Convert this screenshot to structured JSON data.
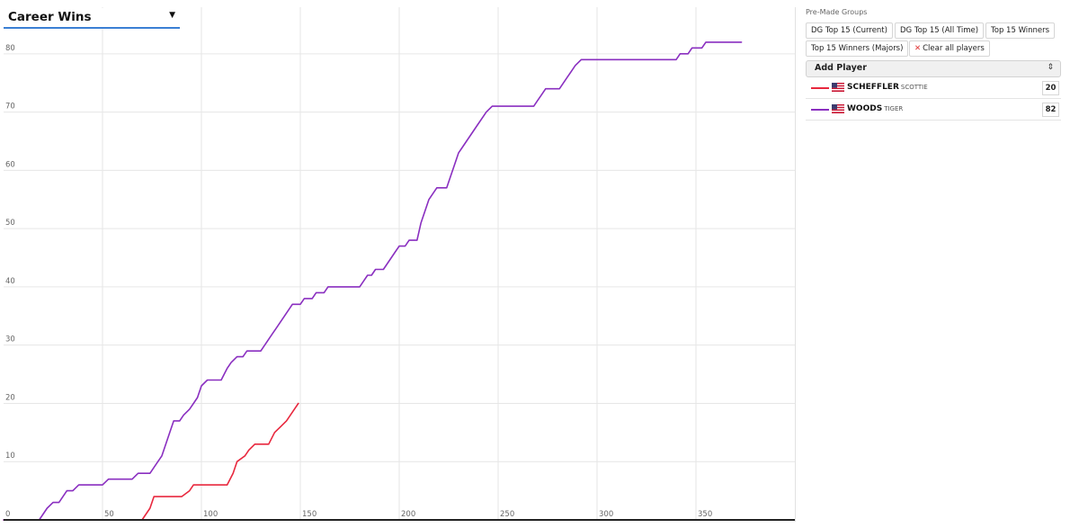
{
  "metric": {
    "label": "Career Wins"
  },
  "panel": {
    "groups_title": "Pre-Made Groups",
    "groups": [
      "DG Top 15 (Current)",
      "DG Top 15 (All Time)",
      "Top 15 Winners",
      "Top 15 Winners (Majors)"
    ],
    "clear_label": "Clear all players",
    "clear_icon": "x-icon",
    "add_player_label": "Add Player",
    "players": [
      {
        "last": "SCHEFFLER",
        "first": "SCOTTIE",
        "value": "20",
        "color": "#e8283e",
        "flag": "us-flag-icon"
      },
      {
        "last": "WOODS",
        "first": "TIGER",
        "value": "82",
        "color": "#8a2fc0",
        "flag": "us-flag-icon"
      }
    ]
  },
  "chart_data": {
    "type": "line",
    "title": "",
    "xlabel": "",
    "ylabel": "",
    "xlim": [
      0,
      400
    ],
    "ylim": [
      0,
      88
    ],
    "x_ticks": [
      50,
      100,
      150,
      200,
      250,
      300,
      350
    ],
    "y_ticks": [
      0,
      10,
      20,
      30,
      40,
      50,
      60,
      70,
      80
    ],
    "grid": true,
    "series": [
      {
        "name": "SCHEFFLER SCOTTIE",
        "color": "#e8283e",
        "points": [
          [
            0,
            0
          ],
          [
            70,
            0
          ],
          [
            74,
            2
          ],
          [
            76,
            4
          ],
          [
            90,
            4
          ],
          [
            94,
            5
          ],
          [
            96,
            6
          ],
          [
            113,
            6
          ],
          [
            116,
            8
          ],
          [
            118,
            10
          ],
          [
            122,
            11
          ],
          [
            124,
            12
          ],
          [
            127,
            13
          ],
          [
            134,
            13
          ],
          [
            137,
            15
          ],
          [
            140,
            16
          ],
          [
            143,
            17
          ],
          [
            145,
            18
          ],
          [
            147,
            19
          ],
          [
            149,
            20
          ]
        ]
      },
      {
        "name": "WOODS TIGER",
        "color": "#8a2fc0",
        "points": [
          [
            0,
            0
          ],
          [
            18,
            0
          ],
          [
            20,
            1
          ],
          [
            22,
            2
          ],
          [
            25,
            3
          ],
          [
            28,
            3
          ],
          [
            30,
            4
          ],
          [
            32,
            5
          ],
          [
            35,
            5
          ],
          [
            38,
            6
          ],
          [
            50,
            6
          ],
          [
            53,
            7
          ],
          [
            65,
            7
          ],
          [
            68,
            8
          ],
          [
            74,
            8
          ],
          [
            76,
            9
          ],
          [
            78,
            10
          ],
          [
            80,
            11
          ],
          [
            82,
            13
          ],
          [
            84,
            15
          ],
          [
            86,
            17
          ],
          [
            89,
            17
          ],
          [
            91,
            18
          ],
          [
            94,
            19
          ],
          [
            96,
            20
          ],
          [
            98,
            21
          ],
          [
            100,
            23
          ],
          [
            103,
            24
          ],
          [
            110,
            24
          ],
          [
            113,
            26
          ],
          [
            115,
            27
          ],
          [
            118,
            28
          ],
          [
            121,
            28
          ],
          [
            123,
            29
          ],
          [
            130,
            29
          ],
          [
            132,
            30
          ],
          [
            134,
            31
          ],
          [
            136,
            32
          ],
          [
            138,
            33
          ],
          [
            140,
            34
          ],
          [
            142,
            35
          ],
          [
            144,
            36
          ],
          [
            146,
            37
          ],
          [
            150,
            37
          ],
          [
            152,
            38
          ],
          [
            156,
            38
          ],
          [
            158,
            39
          ],
          [
            162,
            39
          ],
          [
            164,
            40
          ],
          [
            180,
            40
          ],
          [
            182,
            41
          ],
          [
            184,
            42
          ],
          [
            186,
            42
          ],
          [
            188,
            43
          ],
          [
            192,
            43
          ],
          [
            194,
            44
          ],
          [
            196,
            45
          ],
          [
            198,
            46
          ],
          [
            200,
            47
          ],
          [
            203,
            47
          ],
          [
            205,
            48
          ],
          [
            209,
            48
          ],
          [
            211,
            51
          ],
          [
            213,
            53
          ],
          [
            215,
            55
          ],
          [
            217,
            56
          ],
          [
            219,
            57
          ],
          [
            224,
            57
          ],
          [
            226,
            59
          ],
          [
            228,
            61
          ],
          [
            230,
            63
          ],
          [
            232,
            64
          ],
          [
            234,
            65
          ],
          [
            236,
            66
          ],
          [
            238,
            67
          ],
          [
            240,
            68
          ],
          [
            242,
            69
          ],
          [
            244,
            70
          ],
          [
            247,
            71
          ],
          [
            260,
            71
          ],
          [
            268,
            71
          ],
          [
            270,
            72
          ],
          [
            272,
            73
          ],
          [
            274,
            74
          ],
          [
            281,
            74
          ],
          [
            283,
            75
          ],
          [
            285,
            76
          ],
          [
            287,
            77
          ],
          [
            289,
            78
          ],
          [
            292,
            79
          ],
          [
            305,
            79
          ],
          [
            340,
            79
          ],
          [
            342,
            80
          ],
          [
            346,
            80
          ],
          [
            348,
            81
          ],
          [
            353,
            81
          ],
          [
            355,
            82
          ],
          [
            373,
            82
          ]
        ]
      }
    ]
  }
}
